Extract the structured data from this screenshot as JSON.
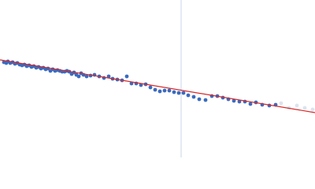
{
  "chart_data": {
    "type": "scatter",
    "xlim": [
      0,
      400
    ],
    "ylim": [
      0,
      200
    ],
    "grid": false,
    "vline": {
      "x": 230,
      "color": "#c8d4ea"
    },
    "fit": {
      "x": [
        0,
        400
      ],
      "values": [
        124,
        57
      ],
      "color": "#d62728"
    },
    "series": [
      {
        "color": "#3a6bbf",
        "x": [
          5,
          8,
          10,
          13,
          16,
          19,
          22,
          25,
          28,
          31,
          34,
          37,
          40,
          43,
          46,
          49,
          52,
          55,
          58,
          61,
          64,
          67,
          70,
          73,
          76,
          79,
          82,
          85,
          88,
          91,
          94,
          97,
          100,
          103,
          106,
          110,
          115,
          120,
          126,
          132,
          138,
          143,
          149,
          155,
          161,
          167,
          173,
          179,
          185,
          191,
          197,
          203,
          209,
          215,
          221,
          227,
          233,
          239,
          246,
          253,
          261,
          269,
          276,
          283,
          290,
          297,
          304,
          311,
          318,
          325,
          333,
          342,
          350
        ],
        "values": [
          121,
          120,
          122,
          120,
          121,
          119,
          120,
          118,
          117,
          118,
          116,
          117,
          115,
          116,
          114,
          115,
          113,
          114,
          112,
          113,
          110,
          112,
          110,
          111,
          110,
          109,
          109,
          110,
          109,
          106,
          108,
          105,
          103,
          107,
          105,
          103,
          104,
          105,
          103,
          101,
          103,
          100,
          99,
          98,
          103,
          94,
          94,
          92,
          93,
          89,
          86,
          84,
          85,
          85,
          83,
          82,
          82,
          79,
          77,
          74,
          73,
          78,
          78,
          76,
          74,
          72,
          71,
          71,
          68,
          70,
          67,
          66,
          67
        ]
      },
      {
        "color": "#dde3ee",
        "x": [
          357,
          367,
          377,
          387,
          397
        ],
        "values": [
          69,
          63,
          66,
          63,
          61
        ]
      }
    ]
  }
}
